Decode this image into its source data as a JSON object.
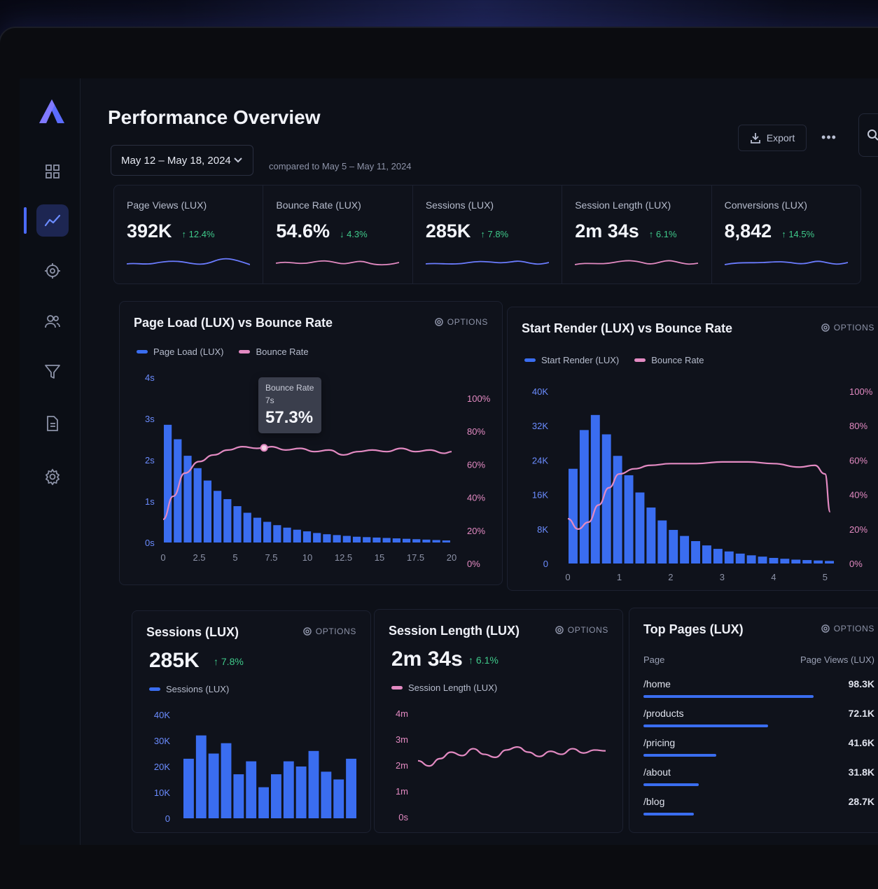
{
  "app": {
    "page_title": "Performance Overview",
    "date_range": "May 12 – May 18, 2024",
    "compare_text": "compared to May 5 – May 11, 2024",
    "export_label": "Export",
    "more_label": "•••"
  },
  "colors": {
    "accent": "#4b6bff",
    "bar": "#3a6df0",
    "pink": "#e38ac2",
    "positive": "#3fc98a"
  },
  "sidebar": {
    "items": [
      {
        "icon": "grid-icon"
      },
      {
        "icon": "trend-icon",
        "active": true
      },
      {
        "icon": "target-icon"
      },
      {
        "icon": "users-icon"
      },
      {
        "icon": "filter-icon"
      },
      {
        "icon": "document-icon"
      },
      {
        "icon": "settings-icon"
      }
    ]
  },
  "kpis": [
    {
      "label": "Page Views (LUX)",
      "value": "392K",
      "delta": "↑ 12.4%"
    },
    {
      "label": "Bounce Rate (LUX)",
      "value": "54.6%",
      "delta": "↓ 4.3%"
    },
    {
      "label": "Sessions (LUX)",
      "value": "285K",
      "delta": "↑ 7.8%"
    },
    {
      "label": "Session Length (LUX)",
      "value": "2m 34s",
      "delta": "↑ 6.1%"
    },
    {
      "label": "Conversions (LUX)",
      "value": "8,842",
      "delta": "↑ 14.5%"
    }
  ],
  "options_label": "OPTIONS",
  "page_load_chart": {
    "title": "Page Load (LUX) vs Bounce Rate",
    "legend": [
      "Page Load (LUX)",
      "Bounce Rate"
    ],
    "tooltip": {
      "label": "Bounce Rate",
      "x": "7s",
      "value": "57.3%"
    }
  },
  "start_render_chart": {
    "title": "Start Render (LUX) vs Bounce Rate",
    "legend": [
      "Start Render (LUX)",
      "Bounce Rate"
    ]
  },
  "sessions_card": {
    "title": "Sessions (LUX)",
    "value": "285K",
    "delta": "↑ 7.8%",
    "legend": "Sessions (LUX)"
  },
  "session_length_card": {
    "title": "Session Length (LUX)",
    "value": "2m 34s",
    "delta": "↑ 6.1%",
    "legend": "Session Length (LUX)"
  },
  "top_pages": {
    "title": "Top Pages (LUX)",
    "col_page": "Page",
    "col_views": "Page Views (LUX)",
    "rows": [
      {
        "page": "/home",
        "views": "98.3K",
        "share": 0.98
      },
      {
        "page": "/products",
        "views": "72.1K",
        "share": 0.72
      },
      {
        "page": "/pricing",
        "views": "41.6K",
        "share": 0.42
      },
      {
        "page": "/about",
        "views": "31.8K",
        "share": 0.32
      },
      {
        "page": "/blog",
        "views": "28.7K",
        "share": 0.29
      }
    ]
  },
  "chart_data": [
    {
      "type": "bar",
      "title": "Page Load (LUX) vs Bounce Rate",
      "xlabel": "",
      "ylabel": "",
      "x_ticks": [
        "0",
        "2.5",
        "5",
        "7.5",
        "10",
        "12.5",
        "15",
        "17.5",
        "20"
      ],
      "y_ticks_left": [
        "0s",
        "1s",
        "2s",
        "3s",
        "4s"
      ],
      "y_ticks_right": [
        "0%",
        "20%",
        "40%",
        "60%",
        "80%",
        "100%"
      ],
      "xlim": [
        0,
        20
      ],
      "ylim_left": [
        0,
        4
      ],
      "ylim_right": [
        0,
        100
      ],
      "series": [
        {
          "name": "Page Load (LUX)",
          "type": "bar",
          "values": [
            2.85,
            2.5,
            2.1,
            1.8,
            1.5,
            1.25,
            1.05,
            0.88,
            0.72,
            0.6,
            0.5,
            0.42,
            0.36,
            0.31,
            0.27,
            0.23,
            0.2,
            0.18,
            0.16,
            0.14,
            0.13,
            0.12,
            0.11,
            0.1,
            0.09,
            0.08,
            0.07,
            0.06,
            0.05
          ]
        },
        {
          "name": "Bounce Rate",
          "type": "line",
          "x": [
            0,
            0.7,
            1.5,
            2.5,
            3.5,
            4.5,
            5.5,
            6.5,
            7,
            7.5,
            8.5,
            9.5,
            10.5,
            11.5,
            12.5,
            13.5,
            14.5,
            15.5,
            16.5,
            17.5,
            18.5,
            19.5,
            20
          ],
          "values": [
            14,
            28,
            42,
            49,
            53,
            56,
            58,
            57,
            57.3,
            58,
            56,
            57,
            55,
            56,
            53,
            55,
            56,
            55,
            57,
            55,
            56,
            54,
            55
          ]
        }
      ]
    },
    {
      "type": "bar",
      "title": "Start Render (LUX) vs Bounce Rate",
      "xlabel": "",
      "ylabel": "",
      "x_ticks": [
        "0",
        "1",
        "2",
        "3",
        "4",
        "5"
      ],
      "y_ticks_left": [
        "0",
        "8K",
        "16K",
        "24K",
        "32K",
        "40K"
      ],
      "y_ticks_right": [
        "0%",
        "20%",
        "40%",
        "60%",
        "80%",
        "100%"
      ],
      "xlim": [
        0,
        5.2
      ],
      "ylim_left": [
        0,
        40000
      ],
      "ylim_right": [
        0,
        100
      ],
      "series": [
        {
          "name": "Start Render (LUX)",
          "type": "bar",
          "values": [
            22000,
            31000,
            34500,
            30000,
            25000,
            20500,
            16500,
            13000,
            10000,
            7800,
            6400,
            5200,
            4200,
            3400,
            2800,
            2300,
            1900,
            1600,
            1300,
            1100,
            900,
            800,
            700,
            600
          ]
        },
        {
          "name": "Bounce Rate",
          "type": "line",
          "x": [
            0,
            0.2,
            0.4,
            0.6,
            0.8,
            1.0,
            1.3,
            1.6,
            2.0,
            2.5,
            3.0,
            3.5,
            4.0,
            4.5,
            4.8,
            5.0,
            5.1
          ],
          "values": [
            26,
            20,
            24,
            34,
            44,
            52,
            55,
            57,
            58,
            58,
            59,
            59,
            58,
            56,
            57,
            52,
            30
          ]
        }
      ]
    },
    {
      "type": "bar",
      "title": "Sessions (LUX)",
      "y_ticks": [
        "0",
        "10K",
        "20K",
        "30K",
        "40K"
      ],
      "ylim": [
        0,
        40000
      ],
      "series": [
        {
          "name": "Sessions (LUX)",
          "values": [
            23000,
            32000,
            25000,
            29000,
            17000,
            22000,
            12000,
            17000,
            22000,
            20000,
            26000,
            18000,
            15000,
            23000
          ]
        }
      ]
    },
    {
      "type": "line",
      "title": "Session Length (LUX)",
      "y_ticks": [
        "0s",
        "1m",
        "2m",
        "3m",
        "4m"
      ],
      "ylim": [
        0,
        240
      ],
      "series": [
        {
          "name": "Session Length (LUX)",
          "values": [
            130,
            118,
            135,
            150,
            142,
            158,
            145,
            138,
            155,
            162,
            150,
            140,
            152,
            145,
            158,
            148,
            155,
            153
          ]
        }
      ]
    }
  ]
}
